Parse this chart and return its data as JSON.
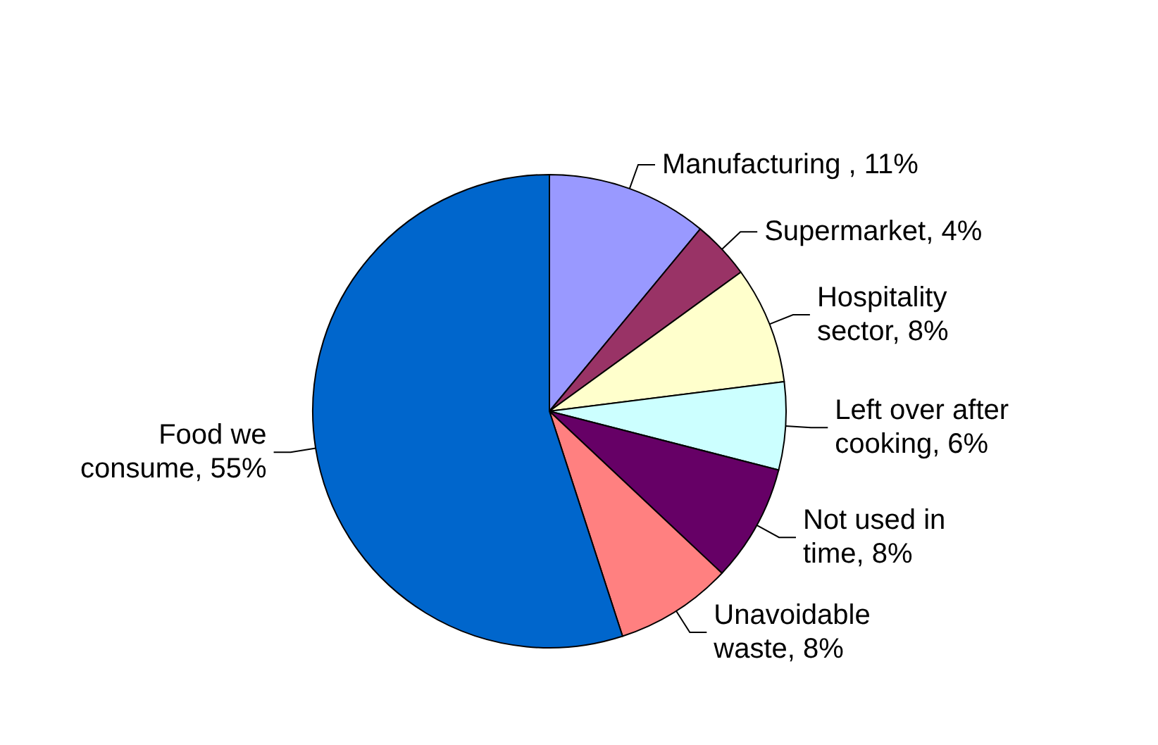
{
  "chart_data": {
    "type": "pie",
    "categories": [
      "Manufacturing ",
      "Supermarket",
      "Hospitality sector",
      "Left over after cooking",
      "Not used in time",
      "Unavoidable waste",
      "Food we consume"
    ],
    "values": [
      11,
      4,
      8,
      6,
      8,
      8,
      55
    ],
    "value_labels": [
      "11%",
      "4%",
      "8%",
      "6%",
      "8%",
      "8%",
      "55%"
    ],
    "colors": [
      "#9999ff",
      "#993366",
      "#ffffcc",
      "#ccffff",
      "#660066",
      "#ff8080",
      "#0066cc"
    ],
    "legend": false
  }
}
